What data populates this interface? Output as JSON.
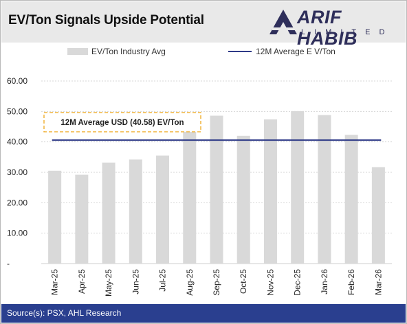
{
  "header": {
    "title": "EV/Ton Signals Upside Potential",
    "logo_main": "ARIF HABIB",
    "logo_sub": "LIMITED"
  },
  "footer": {
    "source": "Source(s): PSX, AHL Research"
  },
  "colors": {
    "bar": "#d9d9d9",
    "average_line": "#2e3a87",
    "callout_border": "#f0b43c",
    "footer_bg": "#2a3f8f"
  },
  "chart_data": {
    "type": "bar",
    "categories": [
      "Mar-25",
      "Apr-25",
      "May-25",
      "Jun-25",
      "Jul-25",
      "Aug-25",
      "Sep-25",
      "Oct-25",
      "Nov-25",
      "Dec-25",
      "Jan-26",
      "Feb-26",
      "Mar-26"
    ],
    "series": [
      {
        "name": "EV/Ton Industry Avg",
        "type": "bar",
        "values": [
          30.5,
          29.2,
          33.2,
          34.2,
          35.5,
          43.8,
          48.6,
          42.0,
          47.4,
          50.1,
          48.8,
          42.3,
          31.7
        ]
      },
      {
        "name": "12M Average E V/Ton",
        "type": "line",
        "values": [
          40.58,
          40.58,
          40.58,
          40.58,
          40.58,
          40.58,
          40.58,
          40.58,
          40.58,
          40.58,
          40.58,
          40.58,
          40.58
        ]
      }
    ],
    "y_ticks": [
      "-",
      "10.00",
      "20.00",
      "30.00",
      "40.00",
      "50.00",
      "60.00"
    ],
    "ylim": [
      0,
      60
    ],
    "grid": true,
    "legend_position": "top",
    "annotation": "12M Average USD (40.58) EV/Ton"
  }
}
